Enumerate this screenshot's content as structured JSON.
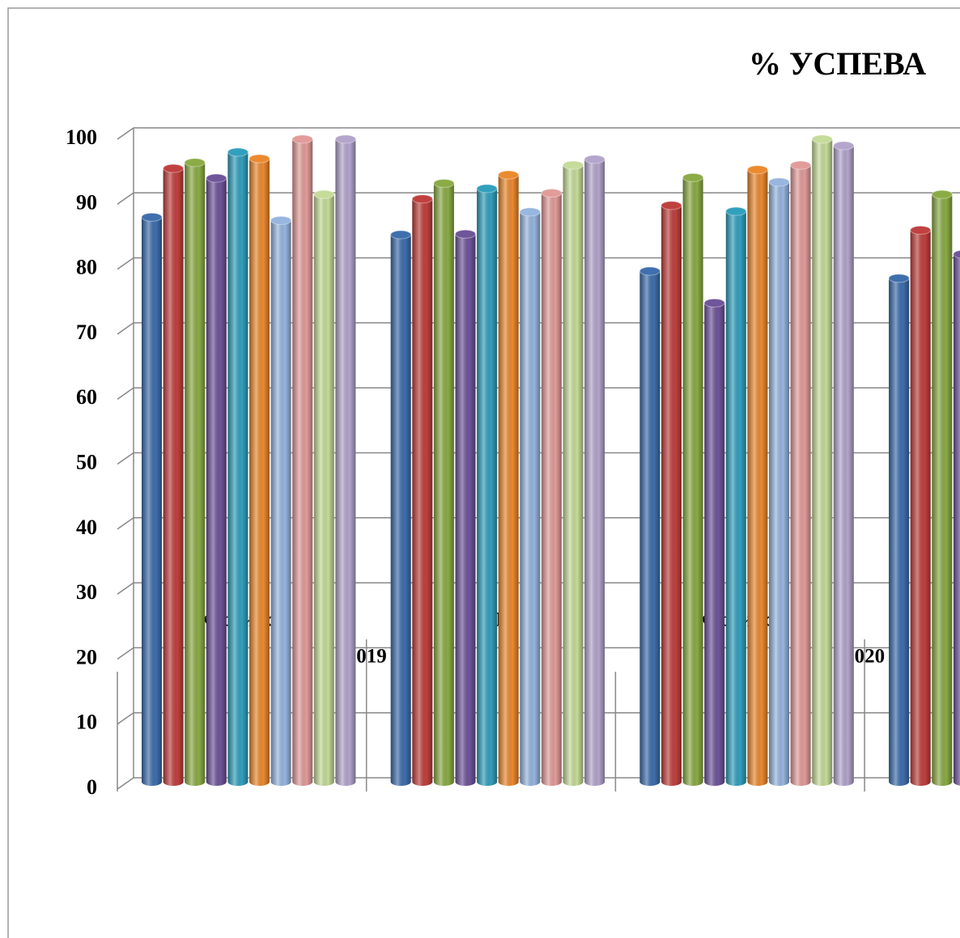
{
  "chart_data": {
    "type": "bar",
    "title": "% УСПЕВА",
    "categories": [
      "Каспийск",
      "РД",
      "Каспийск",
      null
    ],
    "group_labels": [
      "2019",
      "2020"
    ],
    "ylim": [
      0,
      100
    ],
    "yticks": [
      0,
      10,
      20,
      30,
      40,
      50,
      60,
      70,
      80,
      90,
      100
    ],
    "grid": true,
    "series": [
      {
        "color": "#3f6fad",
        "values": [
          88,
          85.3,
          79.7,
          78.6
        ]
      },
      {
        "color": "#c0413f",
        "values": [
          95.5,
          90.8,
          89.8,
          86
        ]
      },
      {
        "color": "#8bac45",
        "values": [
          96.4,
          93.2,
          94.1,
          91.5
        ]
      },
      {
        "color": "#6f559a",
        "values": [
          94,
          85.4,
          74.8,
          82.3
        ]
      },
      {
        "color": "#32a0bd",
        "values": [
          98,
          92.4,
          88.9,
          null
        ]
      },
      {
        "color": "#ec8a2f",
        "values": [
          97,
          94.5,
          95.3,
          null
        ]
      },
      {
        "color": "#97b6e0",
        "values": [
          87.5,
          88.8,
          93.4,
          null
        ]
      },
      {
        "color": "#e29c9a",
        "values": [
          100,
          91.7,
          96,
          null
        ]
      },
      {
        "color": "#c6dc9a",
        "values": [
          91.5,
          96,
          100,
          null
        ]
      },
      {
        "color": "#b3a5cc",
        "values": [
          100,
          96.9,
          99,
          null
        ]
      }
    ]
  }
}
